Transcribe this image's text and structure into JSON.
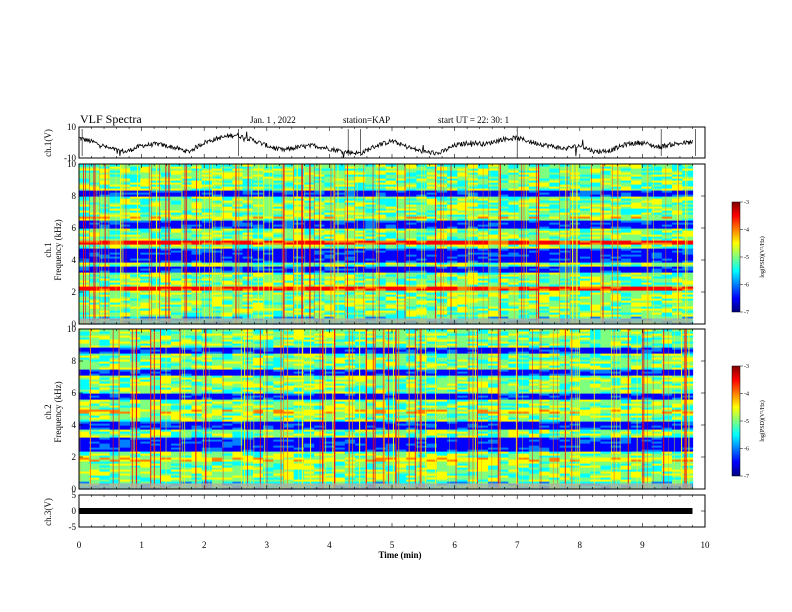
{
  "header": {
    "title": "VLF Spectra",
    "date": "Jan. 1 , 2022",
    "station": "station=KAP",
    "start": "start  UT =  22: 30: 1"
  },
  "chart_data": [
    {
      "type": "line",
      "id": "ch1",
      "ylabel": "ch.1(V)",
      "xlim": [
        0,
        10
      ],
      "ylim": [
        -10,
        10
      ],
      "yticks": [
        "10",
        "-10"
      ],
      "x": [
        0.0,
        0.25,
        0.5,
        0.75,
        1.0,
        1.25,
        1.5,
        1.75,
        2.0,
        2.25,
        2.5,
        2.75,
        3.0,
        3.25,
        3.5,
        3.75,
        4.0,
        4.25,
        4.5,
        4.75,
        5.0,
        5.25,
        5.5,
        5.75,
        6.0,
        6.25,
        6.5,
        6.75,
        7.0,
        7.25,
        7.5,
        7.75,
        8.0,
        8.25,
        8.5,
        8.75,
        9.0,
        9.25,
        9.5,
        9.75
      ],
      "y": [
        3,
        0,
        -4,
        -6,
        -2,
        -1,
        -3,
        -6,
        0,
        3,
        5,
        2,
        -2,
        -5,
        -3,
        -2,
        -4,
        -6,
        -7,
        -2,
        1,
        -3,
        -6,
        -7,
        -2,
        0,
        -1,
        2,
        3,
        0,
        -2,
        -4,
        -2,
        -6,
        -5,
        -1,
        0,
        -3,
        -1,
        0
      ]
    },
    {
      "type": "heatmap",
      "id": "ch2-spectrogram-1",
      "ylabel": "ch.1",
      "ylabel2": "Frequency (kHz)",
      "xlim": [
        0,
        10
      ],
      "ylim": [
        0,
        10
      ],
      "yticks": [
        "0",
        "2",
        "4",
        "6",
        "8",
        "10"
      ],
      "colorbar": {
        "label": "log(PSD)(V²/Hz)",
        "min": -7,
        "max": -3,
        "ticks": [
          "-3",
          "-4",
          "-5",
          "-6",
          "-7"
        ]
      },
      "bands_khz": [
        [
          0.9,
          1.1,
          "green"
        ],
        [
          2.1,
          2.4,
          "red"
        ],
        [
          3.2,
          3.6,
          "blue"
        ],
        [
          3.9,
          4.7,
          "blue"
        ],
        [
          5.0,
          5.3,
          "red"
        ],
        [
          6.0,
          6.5,
          "blue"
        ],
        [
          6.6,
          6.8,
          "yellow"
        ],
        [
          8.0,
          8.4,
          "blue"
        ]
      ]
    },
    {
      "type": "heatmap",
      "id": "ch2-spectrogram-2",
      "ylabel": "ch.2",
      "ylabel2": "Frequency (kHz)",
      "xlim": [
        0,
        10
      ],
      "ylim": [
        0,
        10
      ],
      "yticks": [
        "0",
        "2",
        "4",
        "6",
        "8",
        "10"
      ],
      "colorbar": {
        "label": "log(PSD)(V²/Hz)",
        "min": -7,
        "max": -3,
        "ticks": [
          "-3",
          "-4",
          "-5",
          "-6",
          "-7"
        ]
      },
      "bands_khz": [
        [
          1.7,
          2.0,
          "yellow"
        ],
        [
          2.4,
          3.2,
          "blue"
        ],
        [
          3.8,
          4.3,
          "blue"
        ],
        [
          4.7,
          5.0,
          "yellow"
        ],
        [
          5.6,
          6.0,
          "blue"
        ],
        [
          7.1,
          7.5,
          "blue"
        ],
        [
          8.5,
          8.9,
          "blue"
        ]
      ]
    },
    {
      "type": "line",
      "id": "ch3",
      "ylabel": "ch.3(V)",
      "xlim": [
        0,
        10
      ],
      "ylim": [
        -5,
        5
      ],
      "yticks": [
        "5",
        "0",
        "-5"
      ],
      "x": [
        0,
        9.8
      ],
      "y": [
        0,
        0
      ]
    }
  ],
  "xaxis": {
    "label": "Time (min)",
    "ticks": [
      "0",
      "1",
      "2",
      "3",
      "4",
      "5",
      "6",
      "7",
      "8",
      "9",
      "10"
    ]
  },
  "colors": {
    "jet": [
      "#00007f",
      "#0000ff",
      "#007fff",
      "#00ffff",
      "#7fff7f",
      "#ffff00",
      "#ff7f00",
      "#ff0000",
      "#7f0000"
    ],
    "trace": "#000000"
  }
}
